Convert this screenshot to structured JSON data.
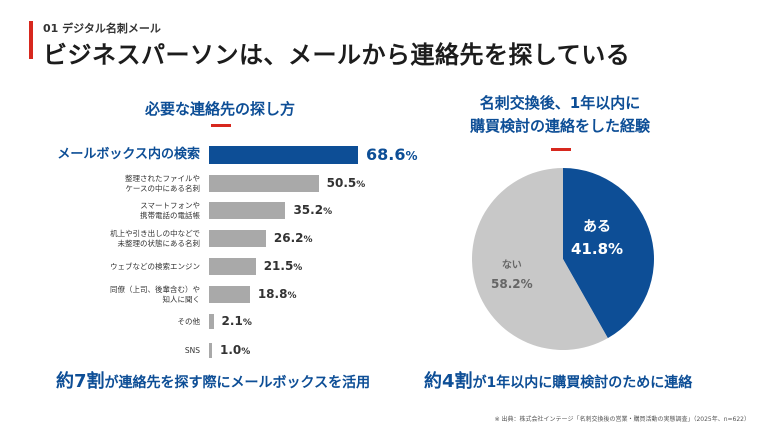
{
  "header": {
    "kicker": "01 デジタル名刺メール",
    "title": "ビジネスパーソンは、メールから連絡先を探している"
  },
  "colors": {
    "accent_red": "#d7281e",
    "brand_blue": "#0d4e96",
    "bar_gray": "#a9a9a9",
    "pie_gray": "#c8c8c8"
  },
  "left_section": {
    "title": "必要な連絡先の探し方",
    "summary_big": "約7割",
    "summary_rest": "が連絡先を探す際にメールボックスを活用"
  },
  "right_section": {
    "title_line1": "名刺交換後、1年以内に",
    "title_line2": "購買検討の連絡をした経験",
    "summary_big": "約4割",
    "summary_rest": "が1年以内に購買検討のために連絡"
  },
  "chart_data": [
    {
      "type": "bar",
      "orientation": "horizontal",
      "title": "必要な連絡先の探し方",
      "categories": [
        [
          "メールボックス内の検索"
        ],
        [
          "整理されたファイルや",
          "ケースの中にある名刺"
        ],
        [
          "スマートフォンや",
          "携帯電話の電話帳"
        ],
        [
          "机上や引き出しの中などで",
          "未整理の状態にある名刺"
        ],
        [
          "ウェブなどの検索エンジン"
        ],
        [
          "同僚（上司、後輩含む）や",
          "知人に聞く"
        ],
        [
          "その他"
        ],
        [
          "SNS"
        ]
      ],
      "values": [
        68.6,
        50.5,
        35.2,
        26.2,
        21.5,
        18.8,
        2.1,
        1.0
      ],
      "value_labels": [
        "68.6",
        "50.5",
        "35.2",
        "26.2",
        "21.5",
        "18.8",
        "2.1",
        "1.0"
      ],
      "unit": "%",
      "highlight_index": 0
    },
    {
      "type": "pie",
      "title": "名刺交換後、1年以内に購買検討の連絡をした経験",
      "slices": [
        {
          "label": "ある",
          "value": 41.8,
          "value_label": "41.8",
          "color": "#0d4e96"
        },
        {
          "label": "ない",
          "value": 58.2,
          "value_label": "58.2",
          "color": "#c8c8c8"
        }
      ],
      "unit": "%"
    }
  ],
  "source": "※ 出典：株式会社インテージ「名刺交換後の営業・購買活動の実態調査」（2025年、n=622）"
}
